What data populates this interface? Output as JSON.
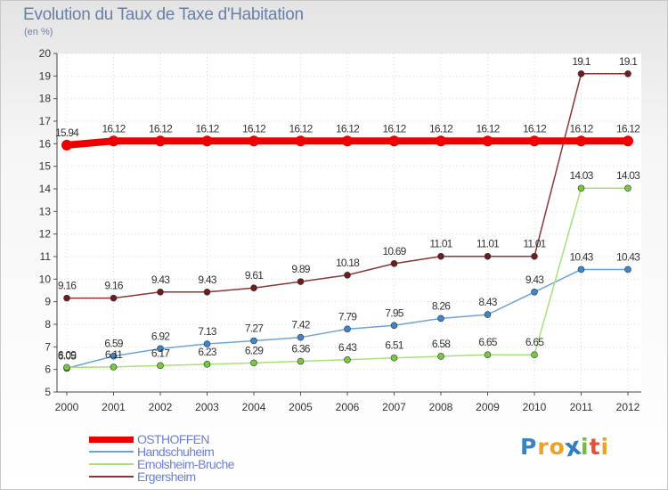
{
  "title": "Evolution du Taux de Taxe d'Habitation",
  "unit_label": "(en %)",
  "logo": {
    "letters": [
      "P",
      "r",
      "o",
      "x",
      "i",
      "t",
      "i"
    ],
    "colors": [
      "#3a82c4",
      "#e8a32a",
      "#e8a32a",
      "#2f7fc1",
      "#7ab648",
      "#e0503a",
      "#e8a32a"
    ]
  },
  "chart_data": {
    "type": "line",
    "title": "Evolution du Taux de Taxe d'Habitation",
    "ylabel": "(en %)",
    "xlabel": "",
    "x": [
      "2000",
      "2001",
      "2002",
      "2003",
      "2004",
      "2005",
      "2006",
      "2007",
      "2008",
      "2009",
      "2010",
      "2011",
      "2012"
    ],
    "ylim": [
      5,
      20
    ],
    "yticks": [
      "5",
      "6",
      "7",
      "8",
      "9",
      "10",
      "11",
      "12",
      "13",
      "14",
      "15",
      "16",
      "17",
      "18",
      "19",
      "20"
    ],
    "grid": true,
    "legend_position": "bottom-left",
    "series": [
      {
        "name": "OSTHOFFEN",
        "color": "#ee0000",
        "values": [
          15.94,
          16.12,
          16.12,
          16.12,
          16.12,
          16.12,
          16.12,
          16.12,
          16.12,
          16.12,
          16.12,
          16.12,
          16.12
        ],
        "labels": [
          "15.94",
          "16.12",
          "16.12",
          "16.12",
          "16.12",
          "16.12",
          "16.12",
          "16.12",
          "16.12",
          "16.12",
          "16.12",
          "16.12",
          "16.12"
        ]
      },
      {
        "name": "Handschuheim",
        "color": "#6fa3d8",
        "marker_color": "#3e86cc",
        "values": [
          6.05,
          6.59,
          6.92,
          7.13,
          7.27,
          7.42,
          7.79,
          7.95,
          8.26,
          8.43,
          9.43,
          10.43,
          10.43
        ],
        "labels": [
          "6.05",
          "6.59",
          "6.92",
          "7.13",
          "7.27",
          "7.42",
          "7.79",
          "7.95",
          "8.26",
          "8.43",
          "9.43",
          "10.43",
          "10.43"
        ]
      },
      {
        "name": "Ernolsheim-Bruche",
        "color": "#a6e07a",
        "marker_color": "#78c83c",
        "values": [
          6.09,
          6.11,
          6.17,
          6.23,
          6.29,
          6.36,
          6.43,
          6.51,
          6.58,
          6.65,
          6.65,
          14.03,
          14.03
        ],
        "labels": [
          "6.09",
          "6.11",
          "6.17",
          "6.23",
          "6.29",
          "6.36",
          "6.43",
          "6.51",
          "6.58",
          "6.65",
          "6.65",
          "14.03",
          "14.03"
        ]
      },
      {
        "name": "Ergersheim",
        "color": "#8a3636",
        "marker_color": "#6e1c1c",
        "values": [
          9.16,
          9.16,
          9.43,
          9.43,
          9.61,
          9.89,
          10.18,
          10.69,
          11.01,
          11.01,
          11.01,
          19.1,
          19.1
        ],
        "labels": [
          "9.16",
          "9.16",
          "9.43",
          "9.43",
          "9.61",
          "9.89",
          "10.18",
          "10.69",
          "11.01",
          "11.01",
          "11.01",
          "19.1",
          "19.1"
        ]
      }
    ]
  }
}
